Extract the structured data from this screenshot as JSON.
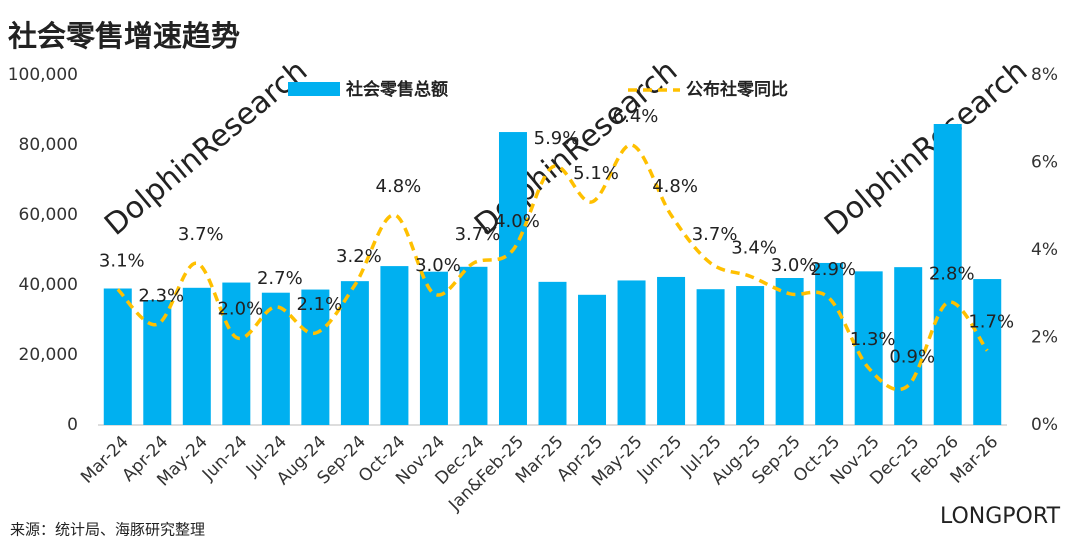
{
  "chart_data": {
    "type": "bar-line",
    "title": "社会零售增速趋势",
    "source": "来源：统计局、海豚研究整理",
    "watermarks": [
      "DolphinResearch",
      "LONGPORT"
    ],
    "categories": [
      "Mar-24",
      "Apr-24",
      "May-24",
      "Jun-24",
      "Jul-24",
      "Aug-24",
      "Sep-24",
      "Oct-24",
      "Nov-24",
      "Dec-24",
      "Jan&Feb-25",
      "Mar-25",
      "Apr-25",
      "May-25",
      "Jun-25",
      "Jul-25",
      "Aug-25",
      "Sep-25",
      "Oct-25",
      "Nov-25",
      "Dec-25",
      "Feb-26",
      "Mar-26"
    ],
    "series": [
      {
        "name": "社会零售总额",
        "type": "bar",
        "color": "#00b0f0",
        "values": [
          39000,
          35700,
          39200,
          40700,
          37800,
          38700,
          41100,
          45400,
          43800,
          45200,
          83700,
          40900,
          37200,
          41300,
          42300,
          38800,
          39700,
          42000,
          46300,
          43900,
          45100,
          86000,
          41700
        ]
      },
      {
        "name": "公布社零同比",
        "type": "line",
        "axis": "y2",
        "color": "#ffc000",
        "values": [
          3.1,
          2.3,
          3.7,
          2.0,
          2.7,
          2.1,
          3.2,
          4.8,
          3.0,
          3.7,
          4.0,
          5.9,
          5.1,
          6.4,
          4.8,
          3.7,
          3.4,
          3.0,
          2.9,
          1.3,
          0.9,
          2.8,
          1.7
        ],
        "value_labels": [
          "3.1%",
          "2.3%",
          "3.7%",
          "2.0%",
          "2.7%",
          "2.1%",
          "3.2%",
          "4.8%",
          "3.0%",
          "3.7%",
          "4.0%",
          "5.9%",
          "5.1%",
          "6.4%",
          "4.8%",
          "3.7%",
          "3.4%",
          "3.0%",
          "2.9%",
          "1.3%",
          "0.9%",
          "2.8%",
          "1.7%"
        ]
      }
    ],
    "ylim": [
      0,
      100000
    ],
    "yticks": [
      0,
      {
        "value": 20000,
        "label": "20,000"
      },
      {
        "value": 40000,
        "label": "40,000"
      },
      {
        "value": 60000,
        "label": "60,000"
      },
      {
        "value": 80000,
        "label": "80,000"
      },
      {
        "value": 100000,
        "label": "100,000"
      }
    ],
    "y2lim": [
      0,
      8
    ],
    "y2ticks": [
      {
        "value": 0,
        "label": "0%"
      },
      {
        "value": 2,
        "label": "2%"
      },
      {
        "value": 4,
        "label": "4%"
      },
      {
        "value": 6,
        "label": "6%"
      },
      {
        "value": 8,
        "label": "8%"
      }
    ],
    "grid": false
  }
}
